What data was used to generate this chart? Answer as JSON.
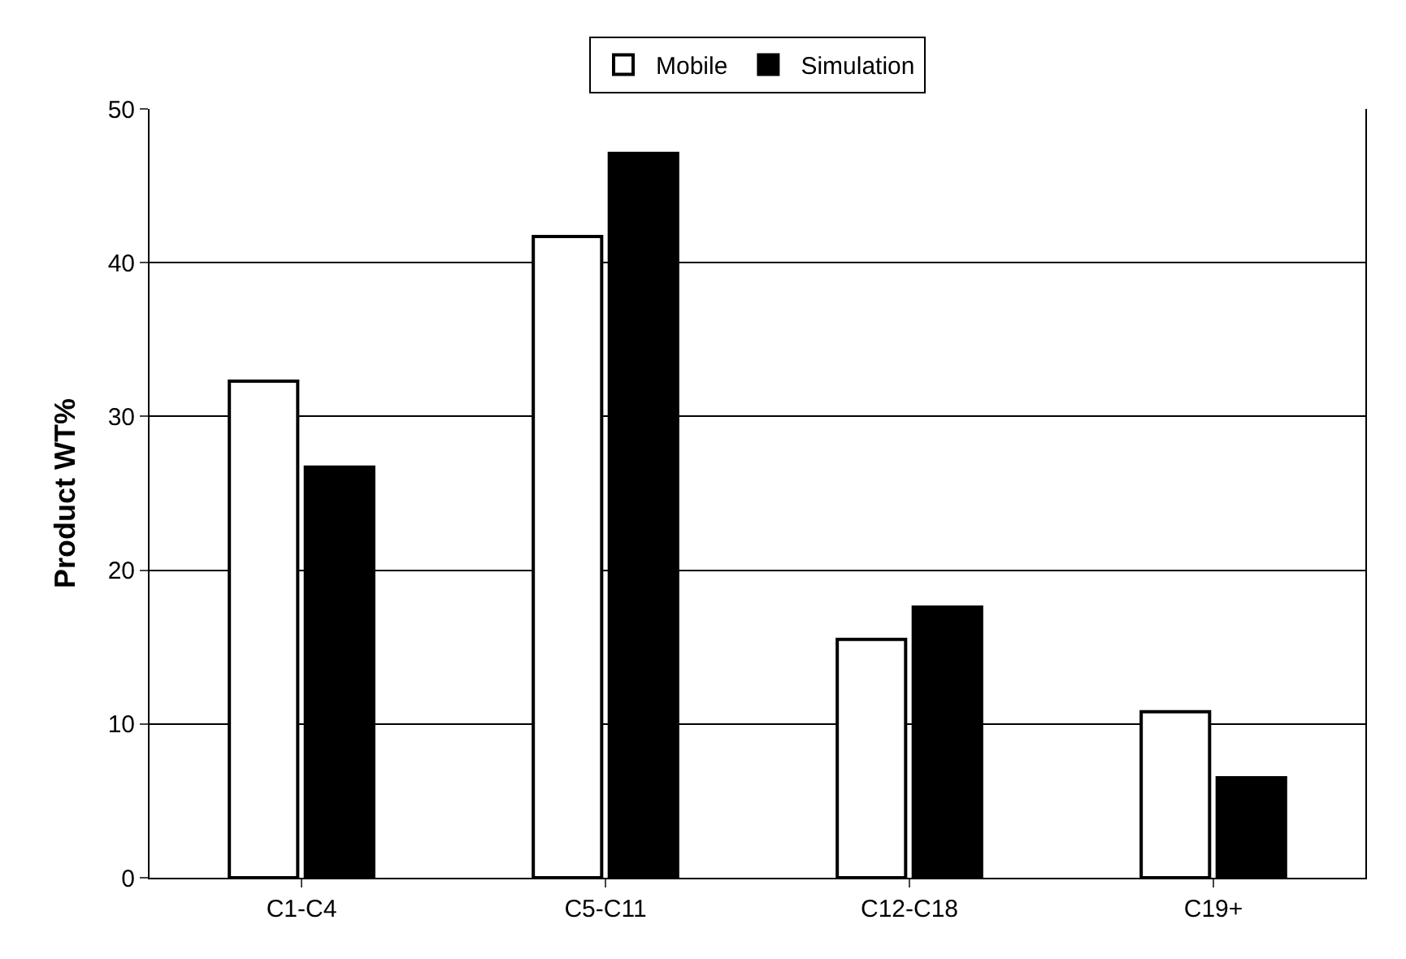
{
  "chart_data": {
    "type": "bar",
    "ylabel": "Product WT%",
    "categories": [
      "C1-C4",
      "C5-C11",
      "C12-C18",
      "C19+"
    ],
    "series": [
      {
        "name": "Mobile",
        "color": "#ffffff",
        "values": [
          32.3,
          41.7,
          15.5,
          10.8
        ]
      },
      {
        "name": "Simulation",
        "color": "#000000",
        "values": [
          26.7,
          47.1,
          17.6,
          6.5
        ]
      }
    ],
    "ylim": [
      0,
      50
    ],
    "yticks": [
      0,
      10,
      20,
      30,
      40,
      50
    ],
    "grid": "y",
    "legend": "top"
  }
}
